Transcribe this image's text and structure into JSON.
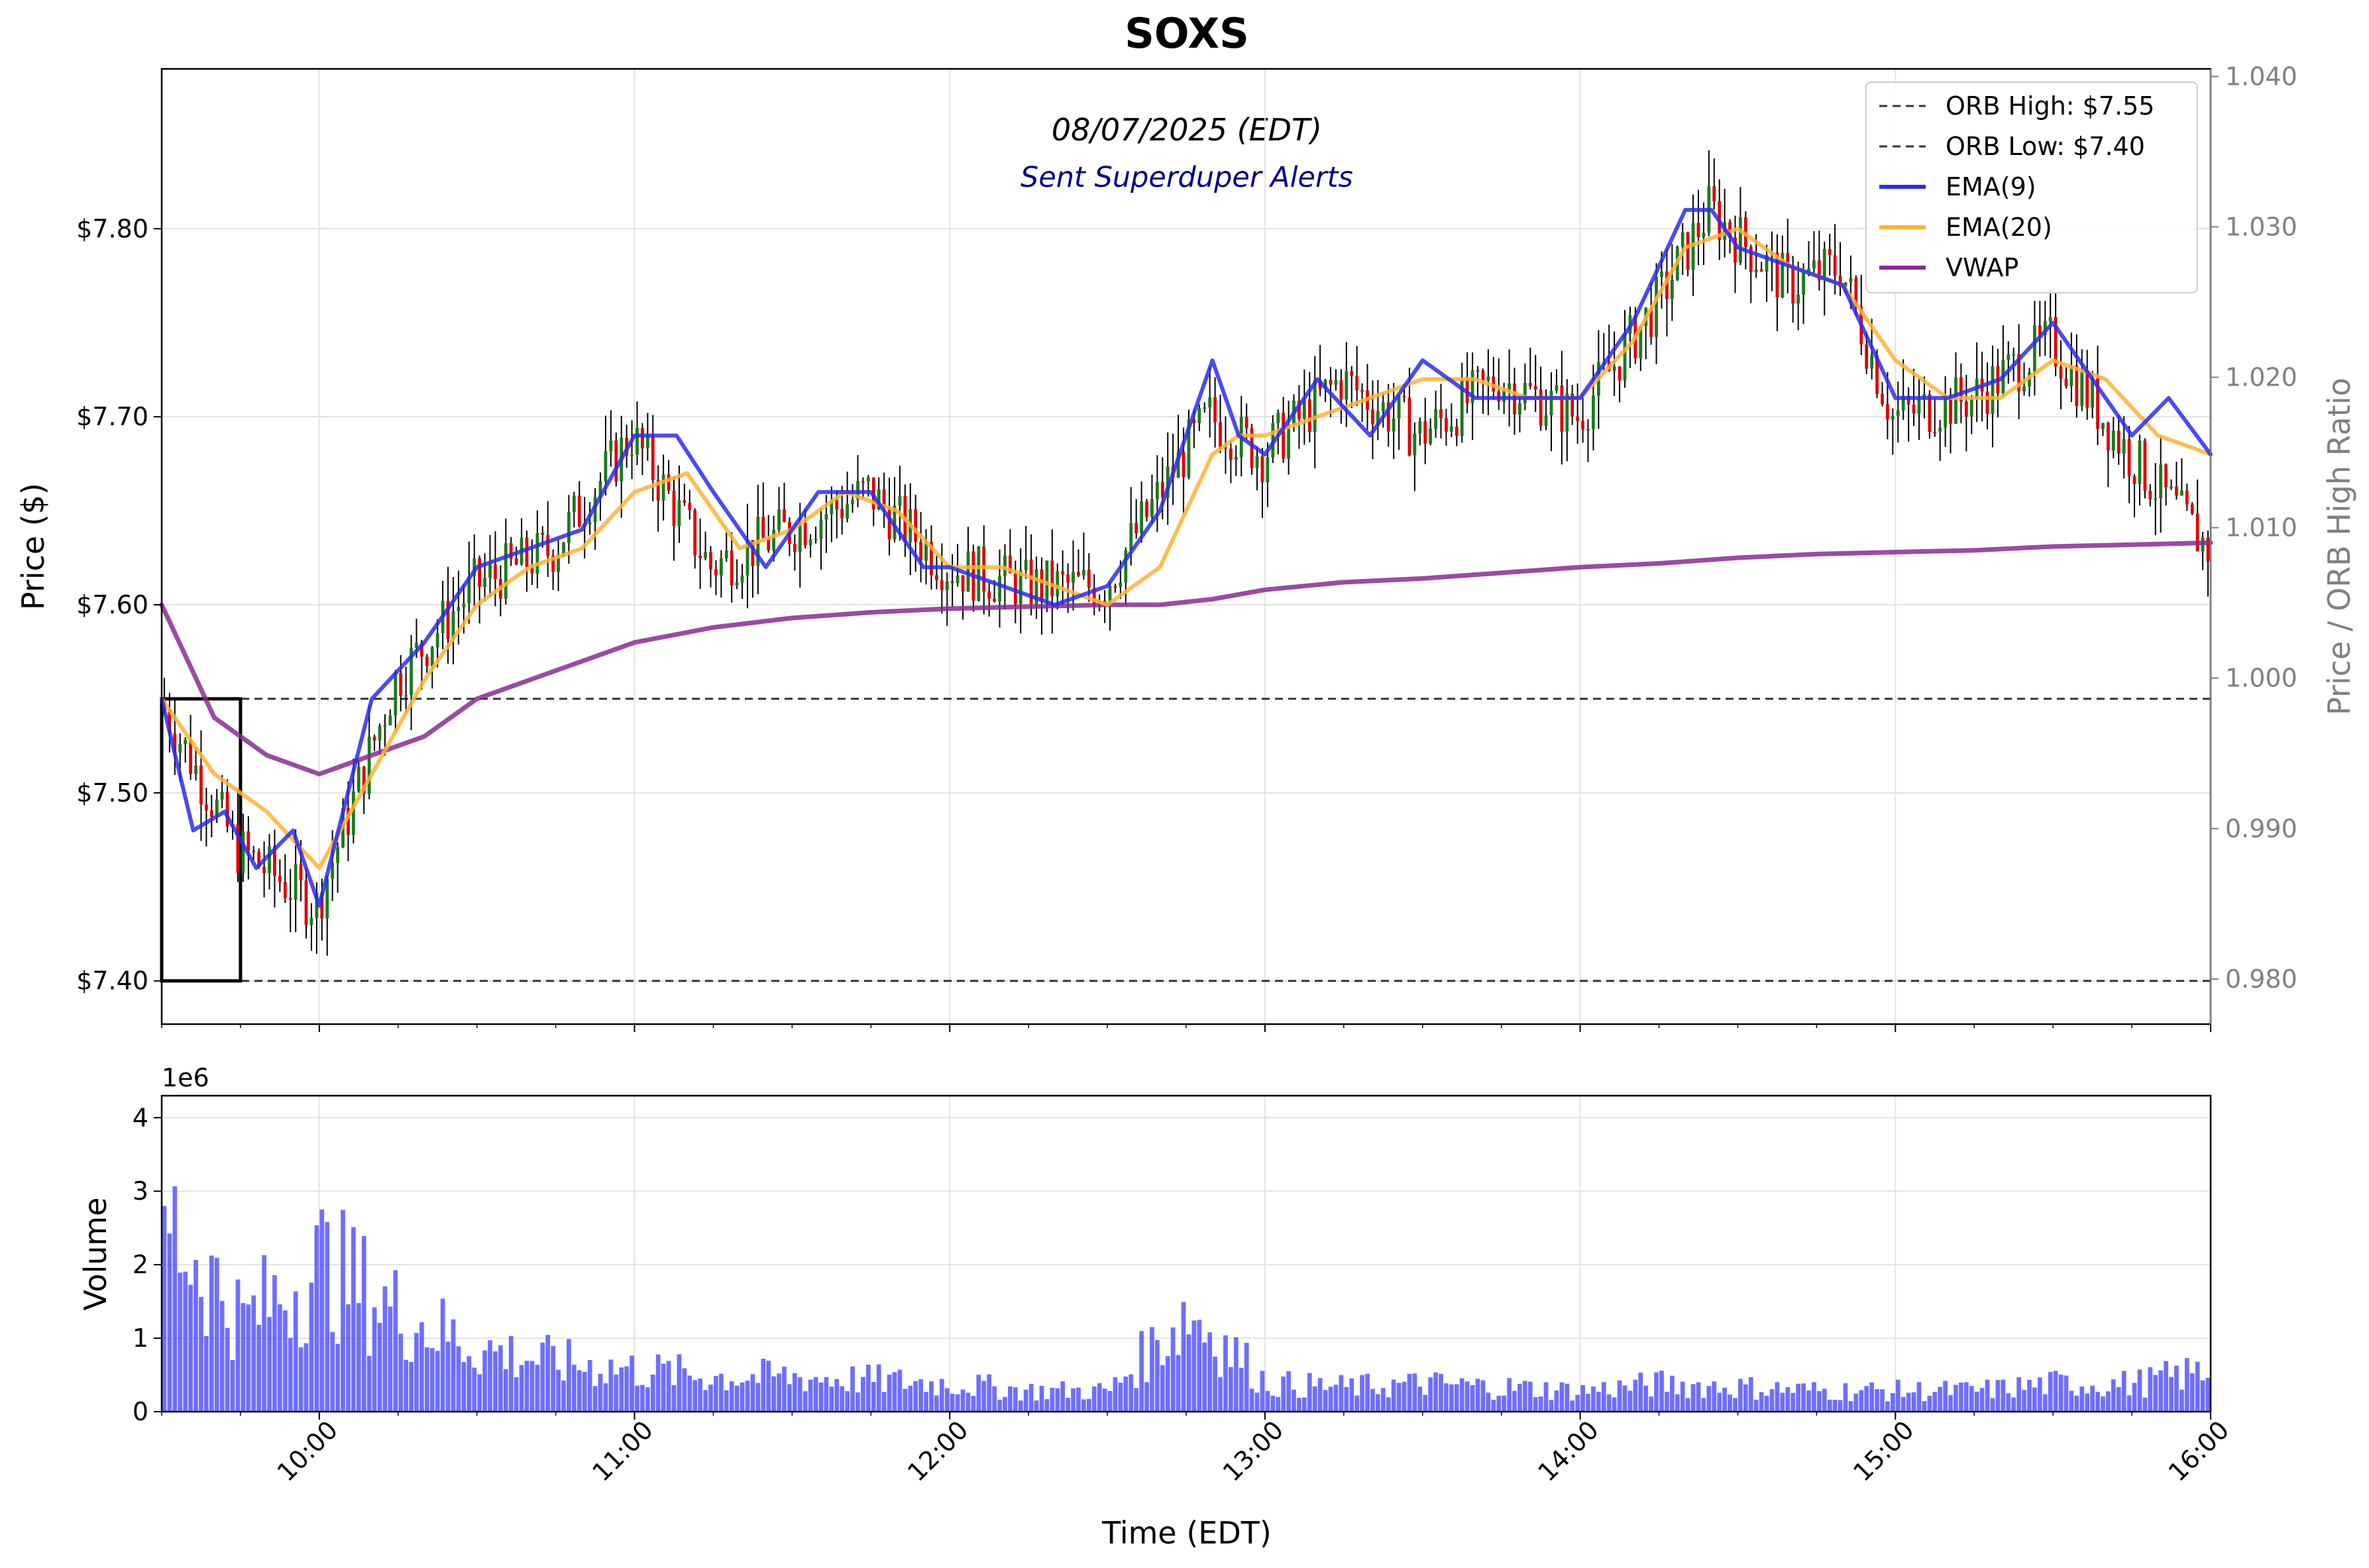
{
  "title": "SOXS",
  "subtitle_date": "08/07/2025 (EDT)",
  "subtitle_alert": "Sent Superduper Alerts",
  "colors": {
    "ema9": "#2b2bf0",
    "ema20": "#ffb233",
    "vwap": "#8a2a94",
    "candle_up": "#1a7a1a",
    "candle_down": "#e00000",
    "wick": "#000000",
    "volume": "#5555ff",
    "orb_line": "#333333"
  },
  "price_axis": {
    "label": "Price ($)",
    "ylim": [
      7.377,
      7.885
    ],
    "ticks": [
      7.4,
      7.5,
      7.6,
      7.7,
      7.8
    ],
    "tick_labels": [
      "$7.40",
      "$7.50",
      "$7.60",
      "$7.70",
      "$7.80"
    ]
  },
  "ratio_axis": {
    "label": "Price / ORB High Ratio",
    "ylim": [
      0.977,
      1.0405
    ],
    "ticks": [
      0.98,
      0.99,
      1.0,
      1.01,
      1.02,
      1.03,
      1.04
    ],
    "tick_labels": [
      "0.980",
      "0.990",
      "1.000",
      "1.010",
      "1.020",
      "1.030",
      "1.040"
    ]
  },
  "volume_axis": {
    "label": "Volume",
    "multiplier_label": "1e6",
    "ylim": [
      0,
      4.3
    ],
    "ticks": [
      0,
      1,
      2,
      3,
      4
    ],
    "tick_labels": [
      "0",
      "1",
      "2",
      "3",
      "4"
    ]
  },
  "time_axis": {
    "label": "Time (EDT)",
    "xlim": [
      "09:30",
      "16:00"
    ],
    "ticks": [
      "10:00",
      "11:00",
      "12:00",
      "13:00",
      "14:00",
      "15:00",
      "16:00"
    ]
  },
  "legend": [
    {
      "label": "ORB High: $7.55",
      "style": "dashed",
      "color": "#333333"
    },
    {
      "label": "ORB Low: $7.40",
      "style": "dashed",
      "color": "#333333"
    },
    {
      "label": "EMA(9)",
      "style": "solid",
      "color": "#2b2bf0"
    },
    {
      "label": "EMA(20)",
      "style": "solid",
      "color": "#ffb233"
    },
    {
      "label": "VWAP",
      "style": "solid",
      "color": "#8a2a94"
    }
  ],
  "chart_data": {
    "type": "line",
    "orb": {
      "high": 7.55,
      "low": 7.4,
      "start": "09:30",
      "end": "09:45"
    },
    "price_series": {
      "time": [
        "09:30",
        "09:45",
        "10:00",
        "10:15",
        "10:30",
        "10:45",
        "11:00",
        "11:15",
        "11:30",
        "11:45",
        "12:00",
        "12:15",
        "12:30",
        "12:45",
        "12:50",
        "13:00",
        "13:15",
        "13:30",
        "13:45",
        "14:00",
        "14:15",
        "14:25",
        "14:40",
        "14:50",
        "15:00",
        "15:15",
        "15:30",
        "15:45",
        "16:00"
      ],
      "close": [
        7.55,
        7.47,
        7.44,
        7.56,
        7.61,
        7.63,
        7.69,
        7.62,
        7.64,
        7.66,
        7.62,
        7.61,
        7.61,
        7.68,
        7.7,
        7.68,
        7.72,
        7.69,
        7.72,
        7.7,
        7.76,
        7.81,
        7.77,
        7.78,
        7.7,
        7.71,
        7.74,
        7.68,
        7.63
      ]
    },
    "series": [
      {
        "name": "EMA(9)",
        "x": [
          "09:30",
          "09:36",
          "09:42",
          "09:48",
          "09:55",
          "10:00",
          "10:10",
          "10:20",
          "10:30",
          "10:40",
          "10:50",
          "11:00",
          "11:08",
          "11:15",
          "11:25",
          "11:35",
          "11:45",
          "11:55",
          "12:00",
          "12:10",
          "12:20",
          "12:30",
          "12:40",
          "12:50",
          "12:55",
          "13:00",
          "13:10",
          "13:20",
          "13:30",
          "13:40",
          "13:50",
          "14:00",
          "14:10",
          "14:20",
          "14:25",
          "14:30",
          "14:40",
          "14:50",
          "15:00",
          "15:10",
          "15:20",
          "15:30",
          "15:35",
          "15:45",
          "15:52",
          "16:00"
        ],
        "values": [
          7.55,
          7.48,
          7.49,
          7.46,
          7.48,
          7.44,
          7.55,
          7.58,
          7.62,
          7.63,
          7.64,
          7.69,
          7.69,
          7.66,
          7.62,
          7.66,
          7.66,
          7.62,
          7.62,
          7.61,
          7.6,
          7.61,
          7.65,
          7.73,
          7.69,
          7.68,
          7.72,
          7.69,
          7.73,
          7.71,
          7.71,
          7.71,
          7.75,
          7.81,
          7.81,
          7.79,
          7.78,
          7.77,
          7.71,
          7.71,
          7.72,
          7.75,
          7.73,
          7.69,
          7.71,
          7.68
        ]
      },
      {
        "name": "EMA(20)",
        "x": [
          "09:30",
          "09:40",
          "09:50",
          "10:00",
          "10:10",
          "10:20",
          "10:30",
          "10:40",
          "10:50",
          "11:00",
          "11:10",
          "11:20",
          "11:30",
          "11:40",
          "11:50",
          "12:00",
          "12:10",
          "12:20",
          "12:30",
          "12:40",
          "12:50",
          "12:55",
          "13:00",
          "13:10",
          "13:20",
          "13:30",
          "13:40",
          "13:50",
          "14:00",
          "14:10",
          "14:20",
          "14:30",
          "14:40",
          "14:50",
          "15:00",
          "15:10",
          "15:20",
          "15:30",
          "15:40",
          "15:50",
          "16:00"
        ],
        "values": [
          7.55,
          7.51,
          7.49,
          7.46,
          7.51,
          7.56,
          7.6,
          7.62,
          7.63,
          7.66,
          7.67,
          7.63,
          7.64,
          7.66,
          7.65,
          7.62,
          7.62,
          7.61,
          7.6,
          7.62,
          7.68,
          7.69,
          7.69,
          7.7,
          7.71,
          7.72,
          7.72,
          7.71,
          7.71,
          7.74,
          7.79,
          7.8,
          7.78,
          7.77,
          7.73,
          7.71,
          7.71,
          7.73,
          7.72,
          7.69,
          7.68
        ]
      },
      {
        "name": "VWAP",
        "x": [
          "09:30",
          "09:40",
          "09:50",
          "10:00",
          "10:10",
          "10:20",
          "10:30",
          "10:40",
          "10:50",
          "11:00",
          "11:15",
          "11:30",
          "11:45",
          "12:00",
          "12:15",
          "12:30",
          "12:40",
          "12:50",
          "13:00",
          "13:15",
          "13:30",
          "13:45",
          "14:00",
          "14:15",
          "14:30",
          "14:45",
          "15:00",
          "15:15",
          "15:30",
          "15:45",
          "16:00"
        ],
        "values": [
          7.6,
          7.54,
          7.52,
          7.51,
          7.52,
          7.53,
          7.55,
          7.56,
          7.57,
          7.58,
          7.588,
          7.593,
          7.596,
          7.598,
          7.599,
          7.6,
          7.6,
          7.603,
          7.608,
          7.612,
          7.614,
          7.617,
          7.62,
          7.622,
          7.625,
          7.627,
          7.628,
          7.629,
          7.631,
          7.632,
          7.633
        ]
      }
    ],
    "volume": {
      "time": [
        "09:30",
        "09:45",
        "10:00",
        "10:15",
        "10:30",
        "10:45",
        "11:00",
        "11:15",
        "11:30",
        "11:45",
        "12:00",
        "12:15",
        "12:30",
        "12:45",
        "13:00",
        "13:15",
        "13:30",
        "13:45",
        "14:00",
        "14:15",
        "14:30",
        "14:45",
        "15:00",
        "15:15",
        "15:30",
        "15:45",
        "16:00"
      ],
      "millions": [
        2.8,
        1.3,
        2.1,
        1.4,
        0.9,
        0.7,
        0.6,
        0.5,
        0.5,
        0.45,
        0.4,
        0.3,
        0.3,
        1.45,
        0.4,
        0.35,
        0.4,
        0.35,
        0.3,
        0.4,
        0.35,
        0.3,
        0.3,
        0.3,
        0.4,
        0.4,
        0.6
      ]
    }
  }
}
